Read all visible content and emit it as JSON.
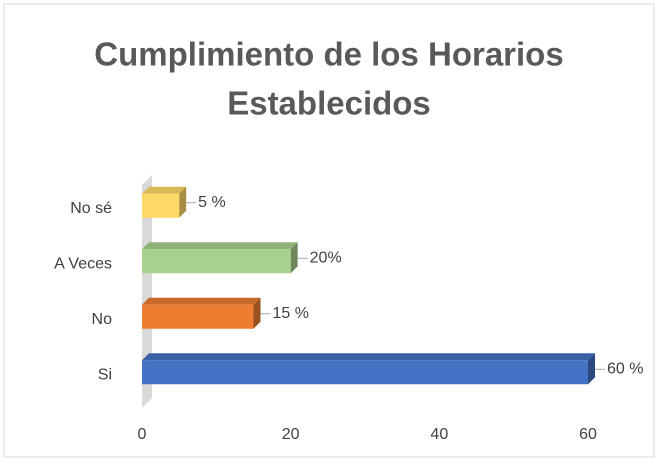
{
  "chart_data": {
    "type": "bar",
    "orientation": "horizontal",
    "title": [
      "Cumplimiento de los Horarios",
      "Establecidos"
    ],
    "categories": [
      "No sé",
      "A Veces",
      "No",
      "Si"
    ],
    "values": [
      5,
      20,
      15,
      60
    ],
    "value_labels": [
      "5 %",
      "20%",
      "15 %",
      "60 %"
    ],
    "colors": [
      "#ffd966",
      "#a9d18e",
      "#ed7d31",
      "#4472c4"
    ],
    "xlim": [
      0,
      60
    ],
    "xticks": [
      0,
      20,
      40,
      60
    ],
    "grid": false
  }
}
